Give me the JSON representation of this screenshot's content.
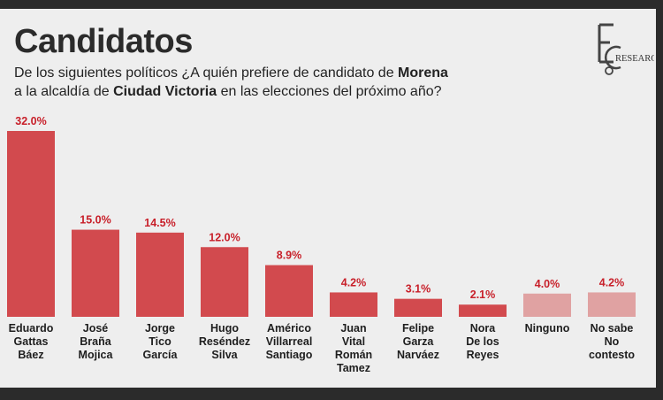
{
  "header": {
    "title": "Candidatos",
    "subtitle": {
      "part1": "De los siguientes políticos ¿A quién prefiere de candidato de ",
      "bold1": "Morena",
      "part2": "a la alcaldía de ",
      "bold2": "Ciudad Victoria",
      "part3": " en las elecciones del próximo año?"
    },
    "logo": {
      "letters": "EC",
      "text": "RESEARCH"
    }
  },
  "colors": {
    "bar": "#d24a4e",
    "bar_light": "#e0a2a2",
    "value_label": "#c8202a"
  },
  "chart_data": {
    "type": "bar",
    "categories": [
      [
        "Eduardo",
        "Gattas",
        "Báez"
      ],
      [
        "José",
        "Braña",
        "Mojica"
      ],
      [
        "Jorge",
        "Tico",
        "García"
      ],
      [
        "Hugo",
        "Reséndez",
        "Silva"
      ],
      [
        "Américo",
        "Villarreal",
        "Santiago"
      ],
      [
        "Juan",
        "Vital",
        "Román",
        "Tamez"
      ],
      [
        "Felipe",
        "Garza",
        "Narváez"
      ],
      [
        "Nora",
        "De los",
        "Reyes"
      ],
      [
        "Ninguno"
      ],
      [
        "No sabe",
        "No",
        "contesto"
      ]
    ],
    "values": [
      32.0,
      15.0,
      14.5,
      12.0,
      8.9,
      4.2,
      3.1,
      2.1,
      4.0,
      4.2
    ],
    "value_labels": [
      "32.0%",
      "15.0%",
      "14.5%",
      "12.0%",
      "8.9%",
      "4.2%",
      "3.1%",
      "2.1%",
      "4.0%",
      "4.2%"
    ],
    "light_bars": [
      8,
      9
    ],
    "ylim": [
      0,
      32
    ],
    "grid": false,
    "legend": "none"
  }
}
